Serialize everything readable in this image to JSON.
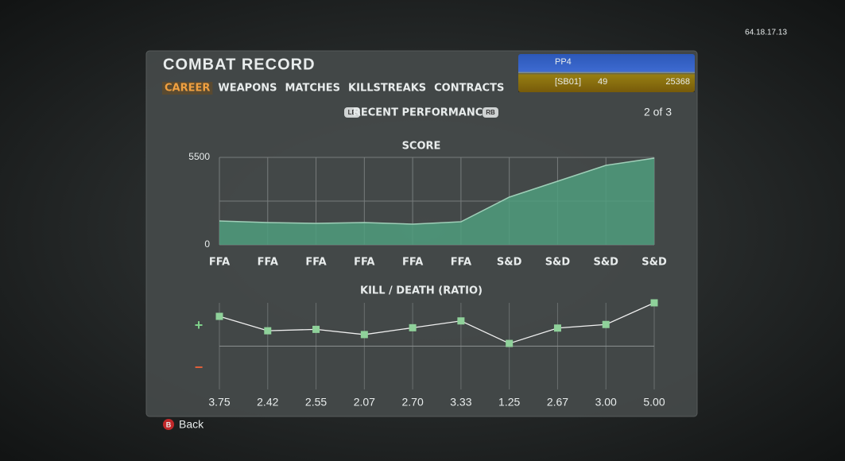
{
  "system_label": "64.18.17.13",
  "header": {
    "title": "COMBAT RECORD",
    "tabs": [
      "CAREER",
      "WEAPONS",
      "MATCHES",
      "KILLSTREAKS",
      "CONTRACTS"
    ],
    "active_tab": 0
  },
  "player": {
    "name": "PP4",
    "clan": "[SB01]",
    "level": "49",
    "currency": "25368"
  },
  "section": {
    "left_button": "LB",
    "title": "RECENT PERFORMANCE",
    "right_button": "RB",
    "page": "2 of 3"
  },
  "chart_data": [
    {
      "type": "area",
      "title": "SCORE",
      "categories": [
        "FFA",
        "FFA",
        "FFA",
        "FFA",
        "FFA",
        "FFA",
        "S&D",
        "S&D",
        "S&D",
        "S&D"
      ],
      "values": [
        1500,
        1400,
        1350,
        1400,
        1300,
        1450,
        3000,
        4000,
        5000,
        5450
      ],
      "ylim": [
        0,
        5500
      ],
      "yticks": [
        0,
        5500
      ],
      "minor_yticks": [
        2750
      ],
      "color": "#4f9e7e",
      "grid": true
    },
    {
      "type": "line",
      "title": "KILL / DEATH (RATIO)",
      "values": [
        3.75,
        2.42,
        2.55,
        2.07,
        2.7,
        3.33,
        1.25,
        2.67,
        3,
        5
      ],
      "value_labels": [
        "3.75",
        "2.42",
        "2.55",
        "2.07",
        "2.70",
        "3.33",
        "1.25",
        "2.67",
        "3.00",
        "5.00"
      ],
      "ylim": [
        -3,
        5
      ],
      "reference_line": 1,
      "y_labels": [
        "+",
        "−"
      ],
      "color": "#8fd19a",
      "grid": true
    }
  ],
  "footer": {
    "button": "B",
    "label": "Back"
  }
}
